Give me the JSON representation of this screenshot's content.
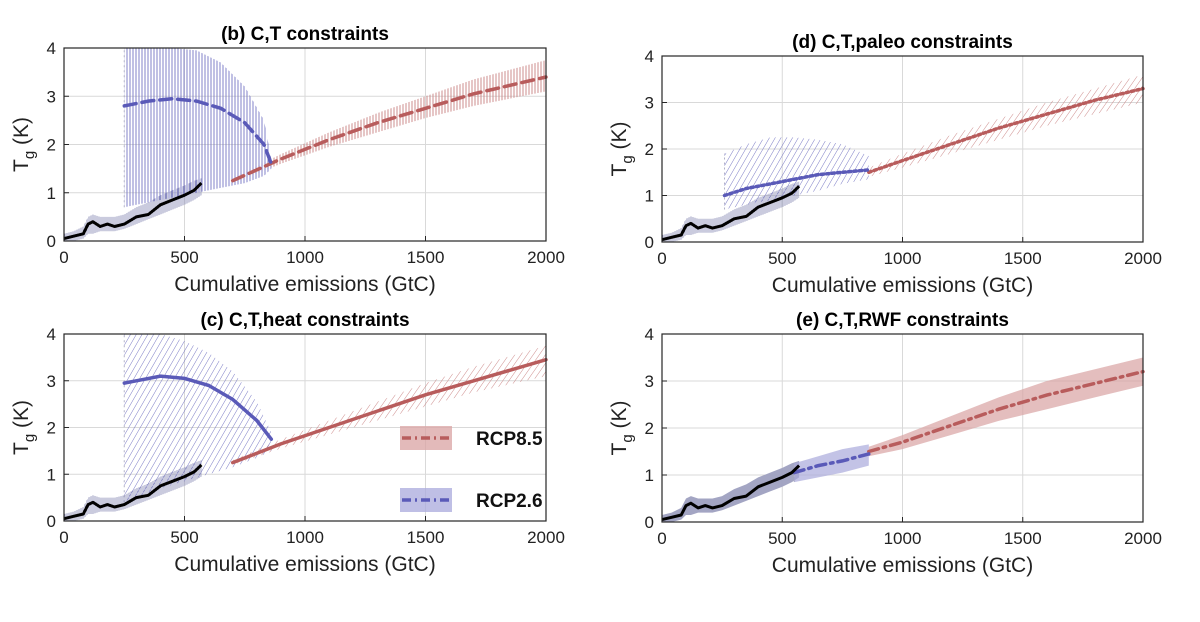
{
  "colors": {
    "rcp85": "#b85c5c",
    "rcp85_band": "#d9a3a3",
    "rcp26": "#5a5ab8",
    "rcp26_band": "#a9a9dc",
    "historical_line": "#000000",
    "historical_band": "#9ea0c0",
    "grid": "#d9d9d9"
  },
  "legend": {
    "placement": "center",
    "items": [
      {
        "label": "RCP8.5",
        "color": "#b85c5c"
      },
      {
        "label": "RCP2.6",
        "color": "#5a5ab8"
      }
    ]
  },
  "chart_data": [
    {
      "type": "line",
      "title": "(b) C,T constraints",
      "xlabel": "Cumulative emissions (GtC)",
      "ylabel": "T",
      "ylabel_sub": "g",
      "ylabel_unit": " (K)",
      "xlim": [
        0,
        2000
      ],
      "ylim": [
        0,
        4
      ],
      "xticks": [
        "0",
        "500",
        "1000",
        "1500",
        "2000"
      ],
      "yticks": [
        "0",
        "1",
        "2",
        "3",
        "4"
      ],
      "grid": true,
      "band_style": "vertical-hatch",
      "historical": {
        "x": [
          0,
          40,
          80,
          100,
          120,
          150,
          180,
          210,
          250,
          300,
          350,
          400,
          450,
          500,
          540,
          570
        ],
        "y": [
          0.05,
          0.1,
          0.15,
          0.35,
          0.4,
          0.3,
          0.35,
          0.3,
          0.35,
          0.5,
          0.55,
          0.75,
          0.85,
          0.95,
          1.05,
          1.2
        ],
        "band_lower": [
          0,
          0,
          0.05,
          0.15,
          0.15,
          0.2,
          0.2,
          0.2,
          0.25,
          0.35,
          0.45,
          0.55,
          0.65,
          0.75,
          0.85,
          0.95
        ],
        "band_upper": [
          0.15,
          0.2,
          0.3,
          0.5,
          0.55,
          0.5,
          0.5,
          0.5,
          0.55,
          0.7,
          0.8,
          0.95,
          1.05,
          1.15,
          1.25,
          1.3
        ]
      },
      "series": [
        {
          "style": "dashed",
          "color": "#b85c5c",
          "band_color": "#d9a3a3",
          "x": [
            700,
            900,
            1100,
            1300,
            1500,
            1700,
            2000
          ],
          "y": [
            1.25,
            1.7,
            2.1,
            2.45,
            2.75,
            3.05,
            3.4
          ],
          "lower": [
            1.2,
            1.6,
            1.95,
            2.25,
            2.55,
            2.8,
            3.1
          ],
          "upper": [
            1.3,
            1.8,
            2.25,
            2.65,
            3.0,
            3.35,
            3.75
          ]
        },
        {
          "style": "dashed",
          "color": "#5a5ab8",
          "band_color": "#a9a9dc",
          "x": [
            250,
            350,
            450,
            550,
            650,
            750,
            830,
            860
          ],
          "y": [
            2.8,
            2.9,
            2.95,
            2.9,
            2.75,
            2.45,
            2.0,
            1.6
          ],
          "lower": [
            0.7,
            0.8,
            0.9,
            1.0,
            1.1,
            1.2,
            1.35,
            1.5
          ],
          "upper": [
            4.0,
            4.0,
            4.0,
            3.95,
            3.7,
            3.2,
            2.5,
            1.7
          ]
        }
      ]
    },
    {
      "type": "line",
      "title": "(d)   C,T,paleo constraints",
      "xlabel": "Cumulative emissions (GtC)",
      "ylabel": "T",
      "ylabel_sub": "g",
      "ylabel_unit": " (K)",
      "xlim": [
        0,
        2000
      ],
      "ylim": [
        0,
        4
      ],
      "xticks": [
        "0",
        "500",
        "1000",
        "1500",
        "2000"
      ],
      "yticks": [
        "0",
        "1",
        "2",
        "3",
        "4"
      ],
      "grid": true,
      "band_style": "diagonal-hatch",
      "historical": {
        "x": [
          0,
          40,
          80,
          100,
          120,
          150,
          180,
          210,
          250,
          300,
          350,
          400,
          450,
          500,
          540,
          570
        ],
        "y": [
          0.05,
          0.1,
          0.15,
          0.35,
          0.4,
          0.3,
          0.35,
          0.3,
          0.35,
          0.5,
          0.55,
          0.75,
          0.85,
          0.95,
          1.05,
          1.2
        ],
        "band_lower": [
          0,
          0,
          0.05,
          0.15,
          0.15,
          0.2,
          0.2,
          0.2,
          0.25,
          0.35,
          0.45,
          0.55,
          0.65,
          0.75,
          0.85,
          0.95
        ],
        "band_upper": [
          0.15,
          0.2,
          0.3,
          0.5,
          0.55,
          0.5,
          0.5,
          0.5,
          0.55,
          0.7,
          0.8,
          0.95,
          1.05,
          1.15,
          1.25,
          1.3
        ]
      },
      "series": [
        {
          "style": "dotted",
          "color": "#b85c5c",
          "band_color": "#d9a3a3",
          "x": [
            860,
            1000,
            1200,
            1400,
            1600,
            1800,
            2000
          ],
          "y": [
            1.5,
            1.75,
            2.1,
            2.45,
            2.75,
            3.05,
            3.3
          ],
          "lower": [
            1.4,
            1.6,
            1.9,
            2.2,
            2.5,
            2.75,
            3.0
          ],
          "upper": [
            1.6,
            1.9,
            2.3,
            2.65,
            3.0,
            3.3,
            3.6
          ]
        },
        {
          "style": "dotted",
          "color": "#5a5ab8",
          "band_color": "#a9a9dc",
          "x": [
            260,
            350,
            450,
            550,
            650,
            750,
            860
          ],
          "y": [
            1.0,
            1.15,
            1.25,
            1.35,
            1.45,
            1.5,
            1.55
          ],
          "lower": [
            0.7,
            0.8,
            0.9,
            1.0,
            1.1,
            1.25,
            1.35
          ],
          "upper": [
            1.9,
            2.1,
            2.25,
            2.25,
            2.2,
            2.1,
            1.85
          ]
        }
      ]
    },
    {
      "type": "line",
      "title": "(c) C,T,heat constraints",
      "xlabel": "Cumulative emissions (GtC)",
      "ylabel": "T",
      "ylabel_sub": "g",
      "ylabel_unit": " (K)",
      "xlim": [
        0,
        2000
      ],
      "ylim": [
        0,
        4
      ],
      "xticks": [
        "0",
        "500",
        "1000",
        "1500",
        "2000"
      ],
      "yticks": [
        "0",
        "1",
        "2",
        "3",
        "4"
      ],
      "grid": true,
      "band_style": "diagonal-hatch",
      "historical": {
        "x": [
          0,
          40,
          80,
          100,
          120,
          150,
          180,
          210,
          250,
          300,
          350,
          400,
          450,
          500,
          540,
          570
        ],
        "y": [
          0.05,
          0.1,
          0.15,
          0.35,
          0.4,
          0.3,
          0.35,
          0.3,
          0.35,
          0.5,
          0.55,
          0.75,
          0.85,
          0.95,
          1.05,
          1.2
        ],
        "band_lower": [
          0,
          0,
          0.05,
          0.15,
          0.15,
          0.2,
          0.2,
          0.2,
          0.25,
          0.35,
          0.45,
          0.55,
          0.65,
          0.75,
          0.85,
          0.95
        ],
        "band_upper": [
          0.15,
          0.2,
          0.3,
          0.5,
          0.55,
          0.5,
          0.5,
          0.5,
          0.55,
          0.7,
          0.8,
          0.95,
          1.05,
          1.15,
          1.25,
          1.3
        ]
      },
      "series": [
        {
          "style": "solid",
          "color": "#b85c5c",
          "band_color": "#d9a3a3",
          "x": [
            700,
            900,
            1100,
            1300,
            1500,
            1700,
            2000
          ],
          "y": [
            1.25,
            1.65,
            2.0,
            2.35,
            2.7,
            3.0,
            3.45
          ],
          "lower": [
            1.2,
            1.55,
            1.85,
            2.15,
            2.45,
            2.75,
            3.1
          ],
          "upper": [
            1.3,
            1.75,
            2.15,
            2.55,
            2.95,
            3.3,
            3.75
          ]
        },
        {
          "style": "solid",
          "color": "#5a5ab8",
          "band_color": "#a9a9dc",
          "x": [
            250,
            300,
            400,
            500,
            600,
            700,
            800,
            860
          ],
          "y": [
            2.95,
            3.0,
            3.1,
            3.05,
            2.9,
            2.6,
            2.15,
            1.75
          ],
          "lower": [
            0.4,
            0.5,
            0.7,
            0.85,
            1.0,
            1.15,
            1.35,
            1.5
          ],
          "upper": [
            4.0,
            4.0,
            4.0,
            3.85,
            3.6,
            3.2,
            2.55,
            1.9
          ]
        }
      ]
    },
    {
      "type": "line",
      "title": "(e) C,T,RWF constraints",
      "xlabel": "Cumulative emissions (GtC)",
      "ylabel": "T",
      "ylabel_sub": "g",
      "ylabel_unit": " (K)",
      "xlim": [
        0,
        2000
      ],
      "ylim": [
        0,
        4
      ],
      "xticks": [
        "0",
        "500",
        "1000",
        "1500",
        "2000"
      ],
      "yticks": [
        "0",
        "1",
        "2",
        "3",
        "4"
      ],
      "grid": true,
      "band_style": "solid-fill",
      "historical": {
        "x": [
          0,
          40,
          80,
          100,
          120,
          150,
          180,
          210,
          250,
          300,
          350,
          400,
          450,
          500,
          540,
          570
        ],
        "y": [
          0.05,
          0.1,
          0.15,
          0.35,
          0.4,
          0.3,
          0.35,
          0.3,
          0.35,
          0.5,
          0.55,
          0.75,
          0.85,
          0.95,
          1.05,
          1.2
        ],
        "band_lower": [
          0,
          0,
          0.05,
          0.15,
          0.15,
          0.2,
          0.2,
          0.2,
          0.25,
          0.35,
          0.45,
          0.55,
          0.65,
          0.75,
          0.85,
          0.95
        ],
        "band_upper": [
          0.15,
          0.2,
          0.3,
          0.5,
          0.55,
          0.5,
          0.5,
          0.5,
          0.55,
          0.7,
          0.8,
          0.95,
          1.05,
          1.15,
          1.25,
          1.3
        ]
      },
      "series": [
        {
          "style": "dashdot",
          "color": "#b85c5c",
          "band_color": "#d9a3a3",
          "x": [
            860,
            1000,
            1200,
            1400,
            1600,
            1800,
            2000
          ],
          "y": [
            1.5,
            1.7,
            2.05,
            2.4,
            2.7,
            2.95,
            3.2
          ],
          "lower": [
            1.4,
            1.55,
            1.85,
            2.15,
            2.4,
            2.65,
            2.9
          ],
          "upper": [
            1.6,
            1.85,
            2.25,
            2.65,
            3.0,
            3.25,
            3.5
          ]
        },
        {
          "style": "dashdot",
          "color": "#5a5ab8",
          "band_color": "#a9a9dc",
          "x": [
            550,
            650,
            750,
            860
          ],
          "y": [
            1.05,
            1.2,
            1.3,
            1.45
          ],
          "lower": [
            0.85,
            0.95,
            1.05,
            1.2
          ],
          "upper": [
            1.25,
            1.4,
            1.55,
            1.65
          ]
        }
      ]
    }
  ]
}
